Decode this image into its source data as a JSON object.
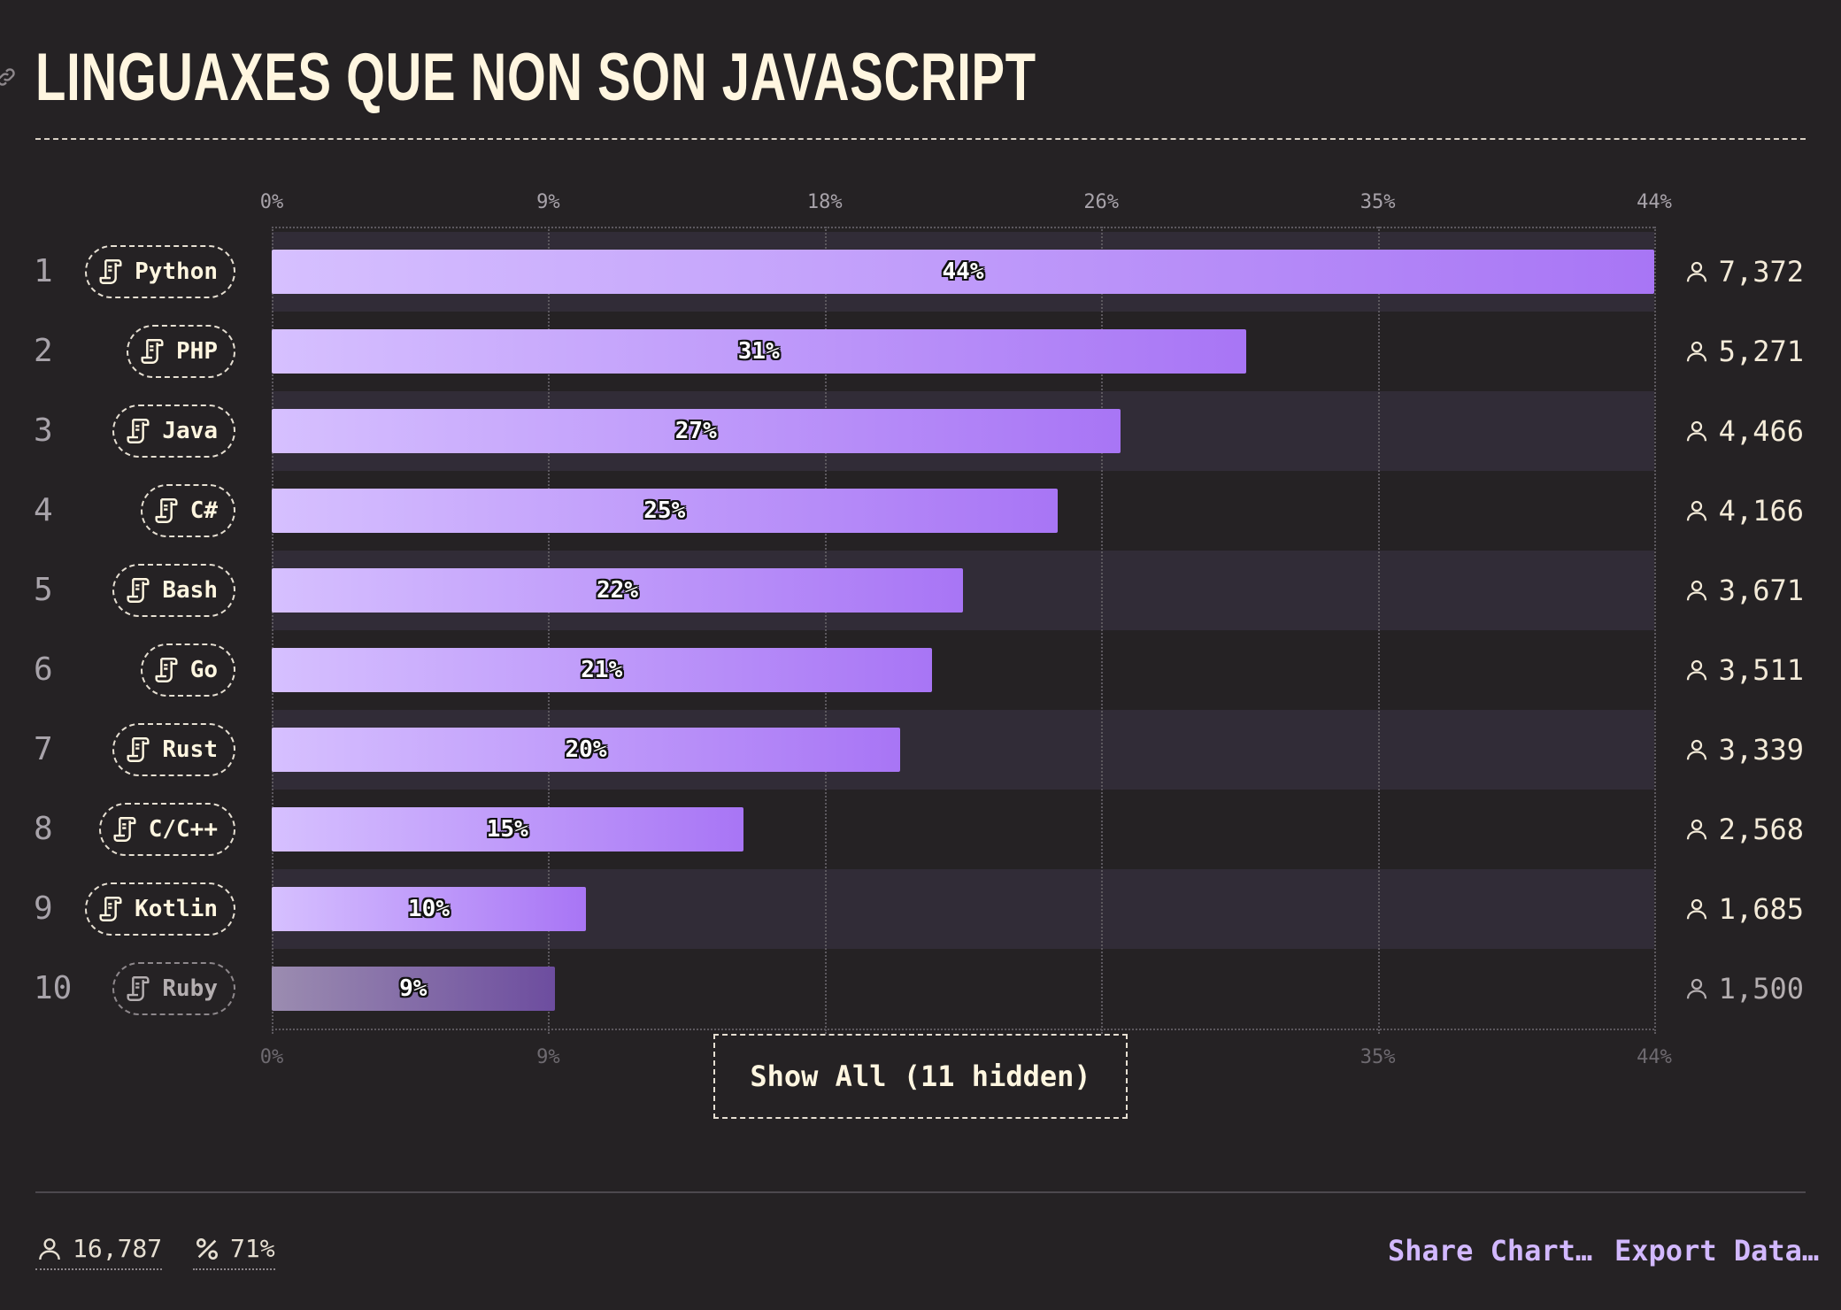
{
  "title": "LINGUAXES QUE NON SON JAVASCRIPT",
  "colors": {
    "background": "#252224",
    "bar_start": "#d6c0ff",
    "bar_end": "#a875f5",
    "accent_link": "#d2b8ff"
  },
  "chart_data": {
    "type": "bar",
    "orientation": "horizontal",
    "title": "LINGUAXES QUE NON SON JAVASCRIPT",
    "x_ticks": [
      "0%",
      "9%",
      "18%",
      "26%",
      "35%",
      "44%"
    ],
    "xlim": [
      0,
      44
    ],
    "grid": true,
    "rows": [
      {
        "rank": "1",
        "name": "Python",
        "value": 44,
        "label": "44%",
        "count": "7,372"
      },
      {
        "rank": "2",
        "name": "PHP",
        "value": 31,
        "label": "31%",
        "count": "5,271"
      },
      {
        "rank": "3",
        "name": "Java",
        "value": 27,
        "label": "27%",
        "count": "4,466"
      },
      {
        "rank": "4",
        "name": "C#",
        "value": 25,
        "label": "25%",
        "count": "4,166"
      },
      {
        "rank": "5",
        "name": "Bash",
        "value": 22,
        "label": "22%",
        "count": "3,671"
      },
      {
        "rank": "6",
        "name": "Go",
        "value": 21,
        "label": "21%",
        "count": "3,511"
      },
      {
        "rank": "7",
        "name": "Rust",
        "value": 20,
        "label": "20%",
        "count": "3,339"
      },
      {
        "rank": "8",
        "name": "C/C++",
        "value": 15,
        "label": "15%",
        "count": "2,568"
      },
      {
        "rank": "9",
        "name": "Kotlin",
        "value": 10,
        "label": "10%",
        "count": "1,685"
      },
      {
        "rank": "10",
        "name": "Ruby",
        "value": 9,
        "label": "9%",
        "count": "1,500",
        "dim": true
      }
    ]
  },
  "show_all_label": "Show All (11 hidden)",
  "footer": {
    "respondents": "16,787",
    "percentage": "71%",
    "share_label": "Share Chart…",
    "export_label": "Export Data…"
  },
  "icons": {
    "language": "scroll-icon",
    "respondent": "person-icon",
    "percent": "percent-icon",
    "link": "link-icon"
  }
}
